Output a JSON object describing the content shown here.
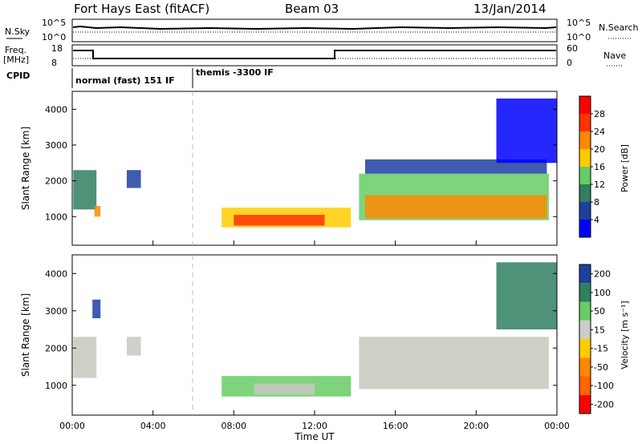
{
  "header": {
    "station": "Fort Hays East (fitACF)",
    "beam": "Beam 03",
    "date": "13/Jan/2014"
  },
  "top_panels": {
    "nsky_label": "N.Sky",
    "nsky_ticks": [
      "10^5",
      "10^0"
    ],
    "nsearch_label": "N.Search",
    "nsearch_ticks": [
      "10^5",
      "10^0"
    ],
    "freq_label": "Freq.",
    "freq_unit": "[MHz]",
    "freq_ticks": [
      "18",
      "8"
    ],
    "nave_label": "Nave",
    "nave_ticks": [
      "60",
      "0"
    ],
    "cpid_label": "CPID",
    "cpid_segments": [
      "normal (fast) 151 IF",
      "themis -3300 IF"
    ]
  },
  "chart_data": [
    {
      "type": "heatmap",
      "name": "power",
      "ylabel": "Slant Range [km]",
      "xlabel": "Time UT",
      "x_ticks": [
        "00:00",
        "04:00",
        "08:00",
        "12:00",
        "16:00",
        "20:00",
        "00:00"
      ],
      "x_range_hours": [
        0,
        24
      ],
      "y_ticks": [
        1000,
        2000,
        3000,
        4000
      ],
      "ylim": [
        200,
        4500
      ],
      "colorbar": {
        "label": "Power [dB]",
        "ticks": [
          4,
          8,
          12,
          16,
          20,
          24,
          28
        ],
        "colors": [
          "#0000ff",
          "#1f3fa0",
          "#2f7f60",
          "#66cc66",
          "#ffcc00",
          "#ff8800",
          "#ff3300",
          "#ff0000"
        ]
      },
      "regions": [
        {
          "t0": 0.05,
          "t1": 1.2,
          "r0": 1200,
          "r1": 2300,
          "color": "#2f7f60"
        },
        {
          "t0": 1.1,
          "t1": 1.4,
          "r0": 1000,
          "r1": 1300,
          "color": "#ff8800"
        },
        {
          "t0": 2.7,
          "t1": 3.4,
          "r0": 1800,
          "r1": 2300,
          "color": "#1f3fa0"
        },
        {
          "t0": 7.4,
          "t1": 13.8,
          "r0": 700,
          "r1": 1250,
          "color": "#ffcc00"
        },
        {
          "t0": 8.0,
          "t1": 12.5,
          "r0": 750,
          "r1": 1050,
          "color": "#ff3300"
        },
        {
          "t0": 14.2,
          "t1": 23.6,
          "r0": 900,
          "r1": 2200,
          "color": "#66cc66"
        },
        {
          "t0": 14.5,
          "t1": 23.5,
          "r0": 950,
          "r1": 1600,
          "color": "#ff8800"
        },
        {
          "t0": 14.5,
          "t1": 23.5,
          "r0": 2200,
          "r1": 2600,
          "color": "#1f3fa0"
        },
        {
          "t0": 21.0,
          "t1": 24.0,
          "r0": 2500,
          "r1": 4300,
          "color": "#0000ff"
        }
      ]
    },
    {
      "type": "heatmap",
      "name": "velocity",
      "ylabel": "Slant Range [km]",
      "xlabel": "Time UT",
      "x_ticks": [
        "00:00",
        "04:00",
        "08:00",
        "12:00",
        "16:00",
        "20:00",
        "00:00"
      ],
      "x_range_hours": [
        0,
        24
      ],
      "y_ticks": [
        1000,
        2000,
        3000,
        4000
      ],
      "ylim": [
        200,
        4500
      ],
      "colorbar": {
        "label": "Velocity [m s⁻¹]",
        "ticks": [
          200,
          100,
          50,
          15,
          -15,
          -50,
          -100,
          -200
        ],
        "colors": [
          "#1f3fa0",
          "#2f7f60",
          "#66cc66",
          "#cccccc",
          "#ffcc00",
          "#ff8800",
          "#ff6600",
          "#ff0000"
        ]
      },
      "regions": [
        {
          "t0": 0.05,
          "t1": 1.2,
          "r0": 1200,
          "r1": 2300,
          "color": "#c8c8c0"
        },
        {
          "t0": 1.0,
          "t1": 1.4,
          "r0": 2800,
          "r1": 3300,
          "color": "#1f3fa0"
        },
        {
          "t0": 2.7,
          "t1": 3.4,
          "r0": 1800,
          "r1": 2300,
          "color": "#c8c8c0"
        },
        {
          "t0": 7.4,
          "t1": 13.8,
          "r0": 700,
          "r1": 1250,
          "color": "#66cc66"
        },
        {
          "t0": 9.0,
          "t1": 12.0,
          "r0": 750,
          "r1": 1050,
          "color": "#c8c8c0"
        },
        {
          "t0": 14.2,
          "t1": 23.6,
          "r0": 900,
          "r1": 2300,
          "color": "#c8c8c0"
        },
        {
          "t0": 21.0,
          "t1": 24.0,
          "r0": 2500,
          "r1": 4300,
          "color": "#2f7f60"
        }
      ]
    }
  ]
}
